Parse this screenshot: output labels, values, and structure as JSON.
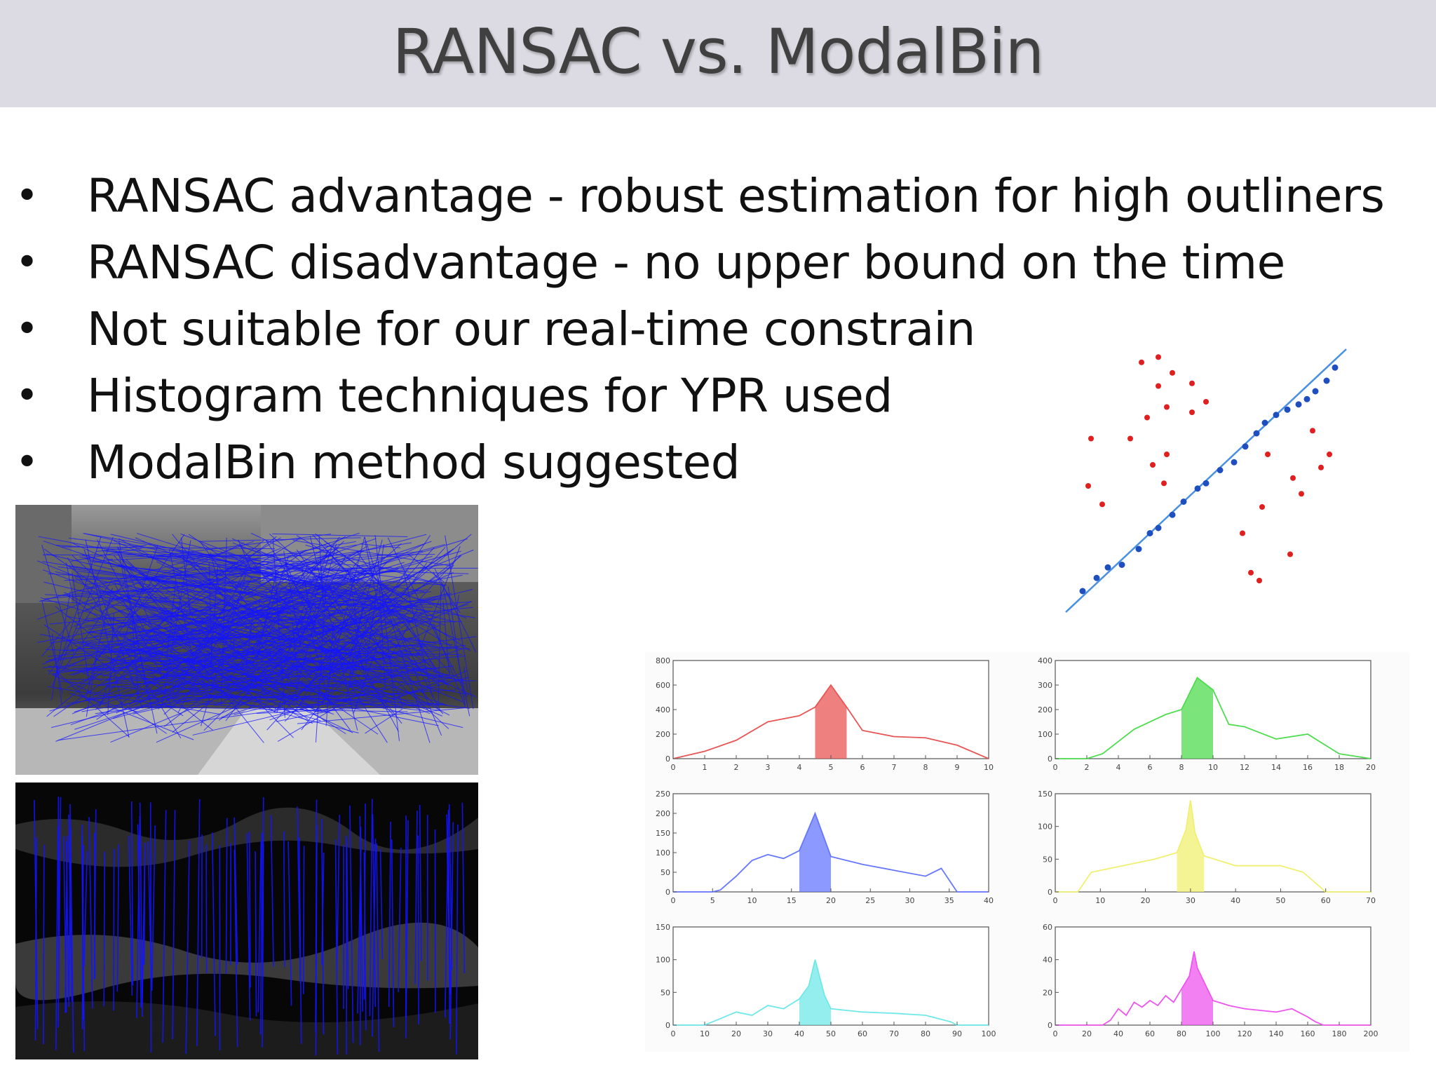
{
  "slide": {
    "title": "RANSAC vs. ModalBin",
    "bullets": [
      "RANSAC advantage - robust estimation for high outliners",
      "RANSAC disadvantage - no upper bound on the time",
      "Not suitable for our real-time constrain",
      "Histogram techniques for YPR used",
      "ModalBin method suggested"
    ]
  },
  "colors": {
    "title_bar": "#dcdbe3",
    "inlier_points": "#1f4fbf",
    "outlier_points": "#e02020",
    "fit_line": "#4a90e2",
    "match_lines": "#1414ff"
  },
  "scatter_figure": {
    "fit_line": {
      "x1": 0.0,
      "y1": 0.0,
      "x2": 10.0,
      "y2": 10.0
    },
    "inliers": [
      [
        0.6,
        0.8
      ],
      [
        1.1,
        1.3
      ],
      [
        1.5,
        1.7
      ],
      [
        2.0,
        1.8
      ],
      [
        2.6,
        2.4
      ],
      [
        3.0,
        3.0
      ],
      [
        3.3,
        3.2
      ],
      [
        3.8,
        3.7
      ],
      [
        4.2,
        4.2
      ],
      [
        4.7,
        4.7
      ],
      [
        5.0,
        4.9
      ],
      [
        5.5,
        5.4
      ],
      [
        6.0,
        5.7
      ],
      [
        6.4,
        6.3
      ],
      [
        6.8,
        6.8
      ],
      [
        7.1,
        7.2
      ],
      [
        7.5,
        7.5
      ],
      [
        7.9,
        7.7
      ],
      [
        8.3,
        7.9
      ],
      [
        8.6,
        8.1
      ],
      [
        8.9,
        8.4
      ],
      [
        9.3,
        8.8
      ],
      [
        9.6,
        9.3
      ]
    ],
    "outliers": [
      [
        0.8,
        4.8
      ],
      [
        0.9,
        6.6
      ],
      [
        1.3,
        4.1
      ],
      [
        2.3,
        6.6
      ],
      [
        2.7,
        9.5
      ],
      [
        3.3,
        9.7
      ],
      [
        2.9,
        7.4
      ],
      [
        3.6,
        7.8
      ],
      [
        3.8,
        9.1
      ],
      [
        3.3,
        8.6
      ],
      [
        3.1,
        5.6
      ],
      [
        3.6,
        6.0
      ],
      [
        3.5,
        4.9
      ],
      [
        4.5,
        8.7
      ],
      [
        4.5,
        7.6
      ],
      [
        5.0,
        8.0
      ],
      [
        6.3,
        3.0
      ],
      [
        6.6,
        1.5
      ],
      [
        6.9,
        1.2
      ],
      [
        7.0,
        4.0
      ],
      [
        7.2,
        6.0
      ],
      [
        8.0,
        2.2
      ],
      [
        8.4,
        4.5
      ],
      [
        8.8,
        6.9
      ],
      [
        9.1,
        5.5
      ],
      [
        9.4,
        6.0
      ],
      [
        8.1,
        5.1
      ]
    ]
  },
  "histograms": [
    {
      "color": "#e85555",
      "xticks": [
        "0",
        "1",
        "2",
        "3",
        "4",
        "5",
        "6",
        "7",
        "8",
        "9",
        "10"
      ],
      "yticks": [
        "0",
        "200",
        "400",
        "600",
        "800"
      ],
      "xmax": 10,
      "ymax": 800,
      "highlight": [
        4.5,
        5.5
      ],
      "curve": [
        [
          0,
          0
        ],
        [
          1,
          60
        ],
        [
          2,
          150
        ],
        [
          3,
          300
        ],
        [
          4,
          350
        ],
        [
          4.5,
          420
        ],
        [
          5,
          600
        ],
        [
          5.5,
          420
        ],
        [
          6,
          230
        ],
        [
          7,
          180
        ],
        [
          8,
          170
        ],
        [
          9,
          110
        ],
        [
          10,
          0
        ]
      ]
    },
    {
      "color": "#4fdc4f",
      "xticks": [
        "0",
        "2",
        "4",
        "6",
        "8",
        "10",
        "12",
        "14",
        "16",
        "18",
        "20"
      ],
      "yticks": [
        "0",
        "100",
        "200",
        "300",
        "400"
      ],
      "xmax": 20,
      "ymax": 400,
      "highlight": [
        8,
        10
      ],
      "curve": [
        [
          0,
          0
        ],
        [
          2,
          0
        ],
        [
          3,
          20
        ],
        [
          5,
          120
        ],
        [
          7,
          180
        ],
        [
          8,
          200
        ],
        [
          9,
          330
        ],
        [
          10,
          280
        ],
        [
          11,
          140
        ],
        [
          12,
          130
        ],
        [
          14,
          80
        ],
        [
          16,
          100
        ],
        [
          18,
          20
        ],
        [
          20,
          0
        ]
      ]
    },
    {
      "color": "#6677ff",
      "xticks": [
        "0",
        "5",
        "10",
        "15",
        "20",
        "25",
        "30",
        "35",
        "40"
      ],
      "yticks": [
        "0",
        "50",
        "100",
        "150",
        "200",
        "250"
      ],
      "xmax": 40,
      "ymax": 250,
      "highlight": [
        16,
        20
      ],
      "curve": [
        [
          0,
          0
        ],
        [
          5,
          0
        ],
        [
          6,
          5
        ],
        [
          8,
          40
        ],
        [
          10,
          80
        ],
        [
          12,
          95
        ],
        [
          14,
          85
        ],
        [
          16,
          105
        ],
        [
          18,
          200
        ],
        [
          20,
          90
        ],
        [
          24,
          70
        ],
        [
          28,
          55
        ],
        [
          32,
          40
        ],
        [
          34,
          60
        ],
        [
          36,
          0
        ],
        [
          40,
          0
        ]
      ]
    },
    {
      "color": "#f0f070",
      "xticks": [
        "0",
        "10",
        "20",
        "30",
        "40",
        "50",
        "60",
        "70"
      ],
      "yticks": [
        "0",
        "50",
        "100",
        "150"
      ],
      "xmax": 70,
      "ymax": 150,
      "highlight": [
        27,
        33
      ],
      "curve": [
        [
          0,
          0
        ],
        [
          5,
          0
        ],
        [
          8,
          30
        ],
        [
          15,
          40
        ],
        [
          22,
          50
        ],
        [
          27,
          60
        ],
        [
          29,
          95
        ],
        [
          30,
          140
        ],
        [
          31,
          90
        ],
        [
          33,
          55
        ],
        [
          40,
          40
        ],
        [
          50,
          40
        ],
        [
          55,
          30
        ],
        [
          60,
          0
        ],
        [
          70,
          0
        ]
      ]
    },
    {
      "color": "#70e8e8",
      "xticks": [
        "0",
        "10",
        "20",
        "30",
        "40",
        "50",
        "60",
        "70",
        "80",
        "90",
        "100"
      ],
      "yticks": [
        "0",
        "50",
        "100",
        "150"
      ],
      "xmax": 100,
      "ymax": 150,
      "highlight": [
        40,
        50
      ],
      "curve": [
        [
          0,
          0
        ],
        [
          10,
          0
        ],
        [
          15,
          10
        ],
        [
          20,
          20
        ],
        [
          25,
          15
        ],
        [
          30,
          30
        ],
        [
          35,
          25
        ],
        [
          40,
          40
        ],
        [
          43,
          60
        ],
        [
          45,
          100
        ],
        [
          48,
          45
        ],
        [
          50,
          25
        ],
        [
          60,
          20
        ],
        [
          70,
          18
        ],
        [
          80,
          15
        ],
        [
          88,
          5
        ],
        [
          90,
          0
        ],
        [
          100,
          0
        ]
      ]
    },
    {
      "color": "#ee55ee",
      "xticks": [
        "0",
        "20",
        "40",
        "60",
        "80",
        "100",
        "120",
        "140",
        "160",
        "180",
        "200"
      ],
      "yticks": [
        "0",
        "20",
        "40",
        "60"
      ],
      "xmax": 200,
      "ymax": 60,
      "highlight": [
        80,
        100
      ],
      "curve": [
        [
          0,
          0
        ],
        [
          30,
          0
        ],
        [
          35,
          3
        ],
        [
          40,
          10
        ],
        [
          45,
          6
        ],
        [
          50,
          14
        ],
        [
          55,
          11
        ],
        [
          60,
          15
        ],
        [
          65,
          12
        ],
        [
          70,
          18
        ],
        [
          75,
          14
        ],
        [
          80,
          22
        ],
        [
          85,
          30
        ],
        [
          88,
          45
        ],
        [
          90,
          35
        ],
        [
          95,
          25
        ],
        [
          100,
          15
        ],
        [
          110,
          12
        ],
        [
          120,
          10
        ],
        [
          130,
          9
        ],
        [
          140,
          8
        ],
        [
          150,
          10
        ],
        [
          160,
          5
        ],
        [
          165,
          2
        ],
        [
          170,
          0
        ],
        [
          200,
          0
        ]
      ]
    }
  ]
}
